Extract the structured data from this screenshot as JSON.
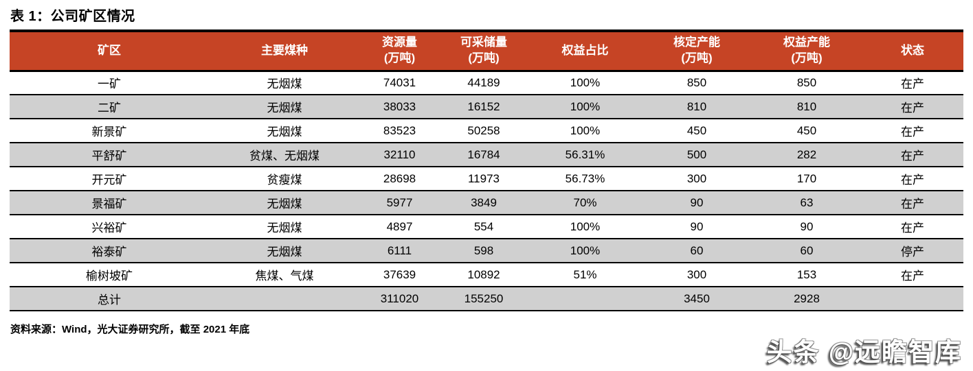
{
  "title": "表 1：公司矿区情况",
  "source_note": "资料来源：Wind，光大证券研究所，截至 2021 年底",
  "watermark": "头条 @远瞻智库",
  "colors": {
    "header_bg": "#C64425",
    "header_text": "#FFFFFF",
    "stripe_bg": "#D0D0D0",
    "border": "#000000"
  },
  "table": {
    "columns": [
      {
        "label": "矿区",
        "sub": ""
      },
      {
        "label": "主要煤种",
        "sub": ""
      },
      {
        "label": "资源量",
        "sub": "(万吨)"
      },
      {
        "label": "可采储量",
        "sub": "(万吨)"
      },
      {
        "label": "权益占比",
        "sub": ""
      },
      {
        "label": "核定产能",
        "sub": "(万吨)"
      },
      {
        "label": "权益产能",
        "sub": "(万吨)"
      },
      {
        "label": "状态",
        "sub": ""
      }
    ],
    "rows": [
      [
        "一矿",
        "无烟煤",
        "74031",
        "44189",
        "100%",
        "850",
        "850",
        "在产"
      ],
      [
        "二矿",
        "无烟煤",
        "38033",
        "16152",
        "100%",
        "810",
        "810",
        "在产"
      ],
      [
        "新景矿",
        "无烟煤",
        "83523",
        "50258",
        "100%",
        "450",
        "450",
        "在产"
      ],
      [
        "平舒矿",
        "贫煤、无烟煤",
        "32110",
        "16784",
        "56.31%",
        "500",
        "282",
        "在产"
      ],
      [
        "开元矿",
        "贫瘦煤",
        "28698",
        "11973",
        "56.73%",
        "300",
        "170",
        "在产"
      ],
      [
        "景福矿",
        "无烟煤",
        "5977",
        "3849",
        "70%",
        "90",
        "63",
        "在产"
      ],
      [
        "兴裕矿",
        "无烟煤",
        "4897",
        "554",
        "100%",
        "90",
        "90",
        "在产"
      ],
      [
        "裕泰矿",
        "无烟煤",
        "6111",
        "598",
        "100%",
        "60",
        "60",
        "停产"
      ],
      [
        "榆树坡矿",
        "焦煤、气煤",
        "37639",
        "10892",
        "51%",
        "300",
        "153",
        "在产"
      ],
      [
        "总计",
        "",
        "311020",
        "155250",
        "",
        "3450",
        "2928",
        ""
      ]
    ]
  }
}
